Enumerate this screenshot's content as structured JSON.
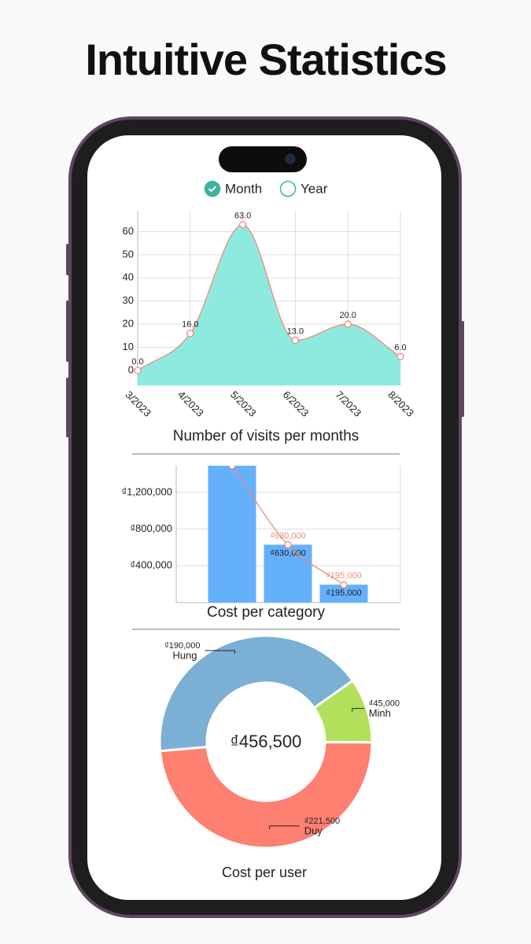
{
  "header": {
    "title": "Intuitive Statistics"
  },
  "toggle": {
    "options": [
      "Month",
      "Year"
    ],
    "selected": 0
  },
  "chart_data": [
    {
      "type": "area",
      "title": "Number of visits per months",
      "x": [
        "3/2023",
        "4/2023",
        "5/2023",
        "6/2023",
        "7/2023",
        "8/2023"
      ],
      "values": [
        0,
        16,
        63,
        13,
        20,
        6
      ],
      "value_labels": [
        "0.0",
        "16.0",
        "63.0",
        "13.0",
        "20.0",
        "6.0"
      ],
      "color": "#8eeadf",
      "line_color": "#f08a7a",
      "ylim": [
        -6.5,
        69
      ],
      "yticks": [
        0,
        10,
        20,
        30,
        40,
        50,
        60
      ],
      "grid": true
    },
    {
      "type": "bar-line",
      "title": "Cost per category",
      "series": [
        {
          "type": "bar",
          "color": "#64b0fb",
          "values": [
            1490000,
            630000,
            195000
          ],
          "value_labels": [
            null,
            "₫630,000",
            "₫195,000"
          ]
        },
        {
          "type": "line",
          "color": "#f08a7a",
          "values": [
            1490000,
            630000,
            195000
          ],
          "value_labels": [
            null,
            "₫630,000",
            "₫195,000"
          ]
        }
      ],
      "ylim": [
        0,
        1490000
      ],
      "yticks": [
        {
          "value": 400000,
          "label": "₫400,000"
        },
        {
          "value": 800000,
          "label": "₫800,000"
        },
        {
          "value": 1200000,
          "label": "₫1,200,000"
        }
      ],
      "grid": true
    },
    {
      "type": "donut",
      "title": "Cost per user",
      "center_label": "₫456,500",
      "labels": [
        "Hung",
        "Minh",
        "Duy"
      ],
      "values": [
        190000,
        45000,
        221500
      ],
      "value_labels": [
        "₫190,000",
        "₫45,000",
        "₫221,500"
      ],
      "colors": [
        "#7bafd4",
        "#b2e05a",
        "#fd8070"
      ]
    }
  ]
}
